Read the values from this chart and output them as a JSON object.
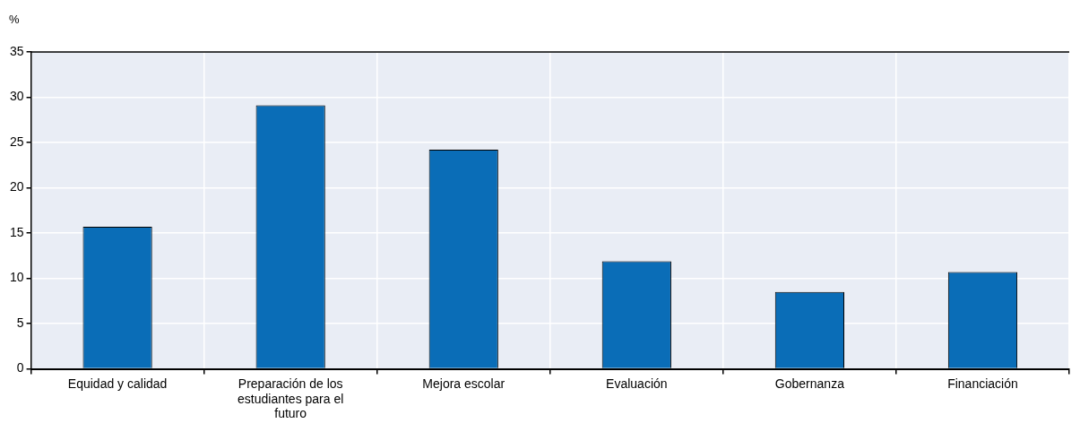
{
  "chart_data": {
    "type": "bar",
    "ylabel": "%",
    "categories": [
      "Equidad y calidad",
      "Preparación de los estudiantes para el futuro",
      "Mejora escolar",
      "Evaluación",
      "Gobernanza",
      "Financiación"
    ],
    "values": [
      15.7,
      29.1,
      24.2,
      11.9,
      8.5,
      10.7
    ],
    "color": "#0a6db7",
    "ylim": [
      0,
      35
    ],
    "yticks": [
      0,
      5,
      10,
      15,
      20,
      25,
      30,
      35
    ],
    "grid": true,
    "legend": false
  }
}
